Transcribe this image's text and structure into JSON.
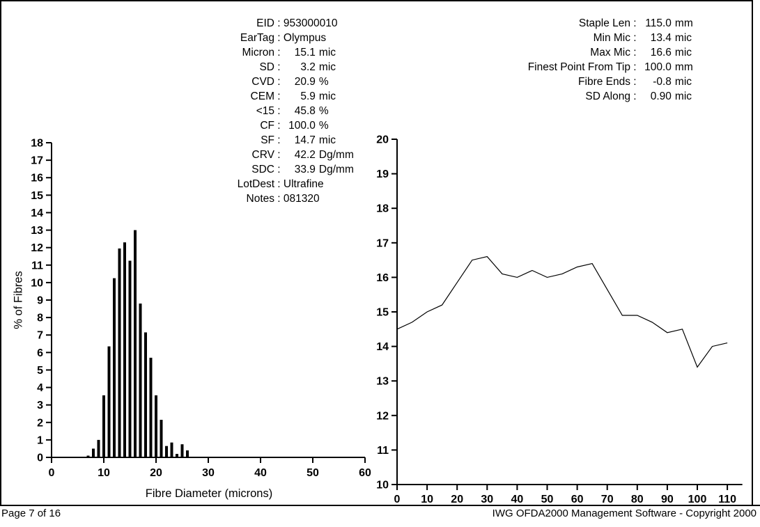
{
  "page": {
    "separator": " : ",
    "footer_left": "Page 7 of 16",
    "footer_right": "IWG OFDA2000 Management Software - Copyright 2000",
    "background": "#ffffff",
    "ink_color": "#000000"
  },
  "left_panel": {
    "rows": [
      {
        "label": "EID",
        "value": "953000010",
        "unit": ""
      },
      {
        "label": "EarTag",
        "value": "Olympus",
        "unit": ""
      },
      {
        "label": "Micron",
        "value": "15.1",
        "unit": "mic"
      },
      {
        "label": "SD",
        "value": "3.2",
        "unit": "mic"
      },
      {
        "label": "CVD",
        "value": "20.9",
        "unit": "%"
      },
      {
        "label": "CEM",
        "value": "5.9",
        "unit": "mic"
      },
      {
        "label": "<15",
        "value": "45.8",
        "unit": "%"
      },
      {
        "label": "CF",
        "value": "100.0",
        "unit": "%"
      },
      {
        "label": "SF",
        "value": "14.7",
        "unit": "mic"
      },
      {
        "label": "CRV",
        "value": "42.2",
        "unit": "Dg/mm"
      },
      {
        "label": "SDC",
        "value": "33.9",
        "unit": "Dg/mm"
      },
      {
        "label": "LotDest",
        "value": "Ultrafine",
        "unit": ""
      },
      {
        "label": "Notes",
        "value": "081320",
        "unit": ""
      }
    ]
  },
  "right_panel": {
    "rows": [
      {
        "label": "Staple Len",
        "value": "115.0",
        "unit": "mm"
      },
      {
        "label": "Min Mic",
        "value": "13.4",
        "unit": "mic"
      },
      {
        "label": "Max Mic",
        "value": "16.6",
        "unit": "mic"
      },
      {
        "label": "Finest Point From Tip",
        "value": "100.0",
        "unit": "mm"
      },
      {
        "label": "Fibre Ends",
        "value": "-0.8",
        "unit": "mic"
      },
      {
        "label": "SD Along",
        "value": "0.90",
        "unit": "mic"
      }
    ]
  },
  "chart_data": [
    {
      "type": "bar",
      "title": "",
      "xlabel": "Fibre Diameter (microns)",
      "ylabel": "% of Fibres",
      "xlim": [
        0,
        60
      ],
      "ylim": [
        0,
        18
      ],
      "grid": false,
      "x_ticks": [
        0,
        10,
        20,
        30,
        40,
        50,
        60
      ],
      "y_ticks": [
        0,
        1,
        2,
        3,
        4,
        5,
        6,
        7,
        8,
        9,
        10,
        11,
        12,
        13,
        14,
        15,
        16,
        17,
        18
      ],
      "categories": [
        7,
        8,
        9,
        10,
        11,
        12,
        13,
        14,
        15,
        16,
        17,
        18,
        19,
        20,
        21,
        22,
        23,
        24,
        25,
        26
      ],
      "values": [
        0.1,
        0.5,
        1.0,
        3.55,
        6.35,
        10.25,
        11.95,
        12.3,
        11.25,
        13.0,
        8.8,
        7.15,
        5.7,
        3.55,
        2.15,
        0.65,
        0.85,
        0.2,
        0.75,
        0.4
      ]
    },
    {
      "type": "line",
      "title": "",
      "xlabel": "",
      "ylabel": "",
      "xlim": [
        0,
        115
      ],
      "ylim": [
        10,
        20
      ],
      "grid": false,
      "x_ticks": [
        0,
        10,
        20,
        30,
        40,
        50,
        60,
        70,
        80,
        90,
        100,
        110
      ],
      "y_ticks": [
        10,
        11,
        12,
        13,
        14,
        15,
        16,
        17,
        18,
        19,
        20
      ],
      "x": [
        0,
        5,
        10,
        15,
        20,
        25,
        30,
        35,
        40,
        45,
        50,
        55,
        60,
        65,
        70,
        75,
        80,
        85,
        90,
        95,
        100,
        105,
        110
      ],
      "values": [
        14.5,
        14.7,
        15.0,
        15.2,
        15.85,
        16.5,
        16.6,
        16.1,
        16.0,
        16.2,
        16.0,
        16.1,
        16.3,
        16.4,
        15.65,
        14.9,
        14.9,
        14.7,
        14.4,
        14.5,
        13.4,
        14.0,
        14.1
      ]
    }
  ]
}
